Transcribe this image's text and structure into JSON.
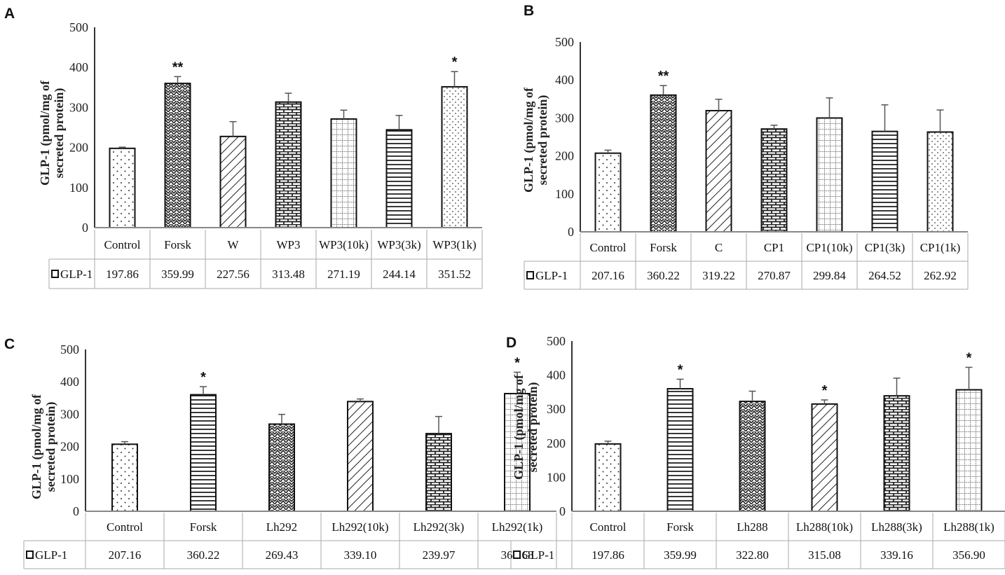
{
  "chart_data": [
    {
      "panel": "A",
      "type": "bar",
      "ylabel_line1": "GLP-1 (pmol/mg of",
      "ylabel_line2": "secreted protein)",
      "ylim": [
        0,
        500
      ],
      "yticks": [
        "0",
        "100",
        "200",
        "300",
        "400",
        "500"
      ],
      "categories": [
        "Control",
        "Forsk",
        "W",
        "WP3",
        "WP3(10k)",
        "WP3(3k)",
        "WP3(1k)"
      ],
      "series": [
        {
          "name": "GLP-1",
          "values": [
            197.86,
            359.99,
            227.56,
            313.48,
            271.19,
            244.14,
            351.52
          ]
        }
      ],
      "value_labels": [
        "197.86",
        "359.99",
        "227.56",
        "313.48",
        "271.19",
        "244.14",
        "351.52"
      ],
      "errors": [
        3,
        17,
        37,
        22,
        22,
        36,
        38
      ],
      "annotations": [
        "",
        "**",
        "",
        "",
        "",
        "",
        "*"
      ],
      "patterns": [
        "dots",
        "zigzag",
        "diag",
        "brick",
        "grid",
        "hlines",
        "dots2"
      ],
      "grid": false,
      "legend": "data-table"
    },
    {
      "panel": "B",
      "type": "bar",
      "ylabel_line1": "GLP-1 (pmol/mg of",
      "ylabel_line2": "secreted protein)",
      "ylim": [
        0,
        500
      ],
      "yticks": [
        "0",
        "100",
        "200",
        "300",
        "400",
        "500"
      ],
      "categories": [
        "Control",
        "Forsk",
        "C",
        "CP1",
        "CP1(10k)",
        "CP1(3k)",
        "CP1(1k)"
      ],
      "series": [
        {
          "name": "GLP-1",
          "values": [
            207.16,
            360.22,
            319.22,
            270.87,
            299.84,
            264.52,
            262.92
          ]
        }
      ],
      "value_labels": [
        "207.16",
        "360.22",
        "319.22",
        "270.87",
        "299.84",
        "264.52",
        "262.92"
      ],
      "errors": [
        8,
        25,
        30,
        10,
        53,
        70,
        58
      ],
      "annotations": [
        "",
        "**",
        "",
        "",
        "",
        "",
        ""
      ],
      "patterns": [
        "dots",
        "zigzag",
        "diag",
        "brick",
        "grid",
        "hlines",
        "dots2"
      ],
      "grid": false,
      "legend": "data-table"
    },
    {
      "panel": "C",
      "type": "bar",
      "ylabel_line1": "GLP-1 (pmol/mg of",
      "ylabel_line2": "secreted protein)",
      "ylim": [
        0,
        500
      ],
      "yticks": [
        "0",
        "100",
        "200",
        "300",
        "400",
        "500"
      ],
      "categories": [
        "Control",
        "Forsk",
        "Lh292",
        "Lh292(10k)",
        "Lh292(3k)",
        "Lh292(1k)"
      ],
      "series": [
        {
          "name": "GLP-1",
          "values": [
            207.16,
            360.22,
            269.43,
            339.1,
            239.97,
            363.68
          ]
        }
      ],
      "value_labels": [
        "207.16",
        "360.22",
        "269.43",
        "339.10",
        "239.97",
        "363.68"
      ],
      "errors": [
        8,
        25,
        30,
        8,
        53,
        66
      ],
      "annotations": [
        "",
        "*",
        "",
        "",
        "",
        "*"
      ],
      "patterns": [
        "dots",
        "hlines",
        "zigzag",
        "diag",
        "brick",
        "grid"
      ],
      "grid": false,
      "legend": "data-table"
    },
    {
      "panel": "D",
      "type": "bar",
      "ylabel_line1": "GLP-1 (pmol/mg of",
      "ylabel_line2": "secreted protein)",
      "ylim": [
        0,
        500
      ],
      "yticks": [
        "0",
        "100",
        "200",
        "300",
        "400",
        "500"
      ],
      "categories": [
        "Control",
        "Forsk",
        "Lh288",
        "Lh288(10k)",
        "Lh288(3k)",
        "Lh288(1k)"
      ],
      "series": [
        {
          "name": "GLP-1",
          "values": [
            197.86,
            359.99,
            322.8,
            315.08,
            339.16,
            356.9
          ]
        }
      ],
      "value_labels": [
        "197.86",
        "359.99",
        "322.80",
        "315.08",
        "339.16",
        "356.90"
      ],
      "errors": [
        8,
        28,
        30,
        12,
        52,
        66
      ],
      "annotations": [
        "",
        "*",
        "",
        "*",
        "",
        "*"
      ],
      "patterns": [
        "dots",
        "hlines",
        "zigzag",
        "diag",
        "brick",
        "grid"
      ],
      "grid": false,
      "legend": "data-table"
    }
  ]
}
